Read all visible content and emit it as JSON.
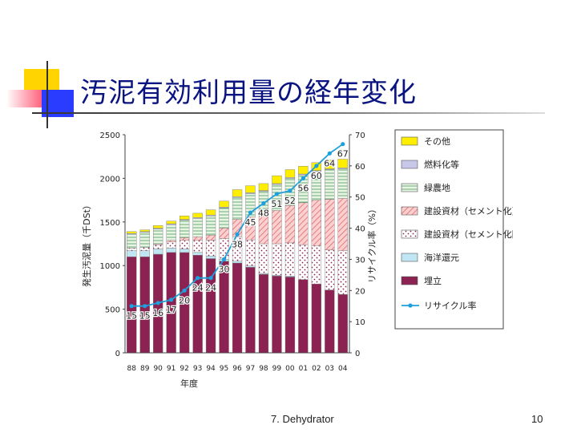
{
  "slide": {
    "title": "汚泥有効利用量の経年変化",
    "footer_center": "7. Dehydrator",
    "page_number": "10"
  },
  "chart_data": {
    "type": "bar",
    "stacked": true,
    "categories": [
      "88",
      "89",
      "90",
      "91",
      "92",
      "93",
      "94",
      "95",
      "96",
      "97",
      "98",
      "99",
      "00",
      "01",
      "02",
      "03",
      "04"
    ],
    "xlabel": "年度",
    "ylabel": "発生汚泥量（千DSt）",
    "ylim": [
      0,
      2500
    ],
    "yticks": [
      0,
      500,
      1000,
      1500,
      2000,
      2500
    ],
    "y2label": "リサイクル率（%）",
    "y2lim": [
      0,
      70
    ],
    "y2ticks": [
      0,
      10,
      20,
      30,
      40,
      50,
      60,
      70
    ],
    "legend_position": "right",
    "series": [
      {
        "name": "埋立",
        "color": "#8b2252",
        "pattern": "solid",
        "values": [
          1100,
          1100,
          1130,
          1150,
          1150,
          1120,
          1080,
          1050,
          1030,
          980,
          900,
          880,
          870,
          840,
          790,
          720,
          670
        ]
      },
      {
        "name": "海洋還元",
        "color": "#bfe6f2",
        "pattern": "solid",
        "values": [
          70,
          70,
          60,
          50,
          40,
          30,
          30,
          20,
          20,
          15,
          10,
          10,
          10,
          0,
          0,
          0,
          0
        ]
      },
      {
        "name": "建設資材（セメント化除く）",
        "color": "#ffffff",
        "pattern": "dots",
        "values": [
          30,
          40,
          50,
          70,
          100,
          140,
          180,
          240,
          280,
          300,
          340,
          360,
          380,
          400,
          440,
          460,
          500
        ]
      },
      {
        "name": "建設資材（セメント化）",
        "color": "#f4b8b8",
        "pattern": "hatch",
        "values": [
          0,
          0,
          10,
          20,
          30,
          40,
          60,
          120,
          200,
          260,
          320,
          380,
          430,
          480,
          520,
          580,
          600
        ]
      },
      {
        "name": "緑農地",
        "color": "#e2f2de",
        "pattern": "lines",
        "values": [
          160,
          170,
          170,
          180,
          200,
          210,
          220,
          230,
          250,
          270,
          280,
          300,
          310,
          320,
          330,
          340,
          340
        ]
      },
      {
        "name": "燃料化等",
        "color": "#c7c7ea",
        "pattern": "solid",
        "values": [
          10,
          10,
          10,
          10,
          10,
          10,
          10,
          10,
          10,
          10,
          10,
          10,
          10,
          10,
          10,
          10,
          10
        ]
      },
      {
        "name": "その他",
        "color": "#ffee00",
        "pattern": "solid",
        "values": [
          20,
          20,
          30,
          30,
          40,
          50,
          60,
          70,
          80,
          80,
          80,
          90,
          90,
          90,
          90,
          100,
          100
        ]
      }
    ],
    "line_series": {
      "name": "リサイクル率",
      "color": "#1ea0dc",
      "values": [
        15,
        15,
        16,
        17,
        20,
        24,
        24,
        30,
        38,
        45,
        48,
        51,
        52,
        56,
        60,
        64,
        67
      ],
      "labels": [
        "15",
        "15",
        "16",
        "17",
        "20",
        "24",
        "24",
        "30",
        "38",
        "45",
        "48",
        "51",
        "52",
        "56",
        "60",
        "64",
        "67"
      ]
    }
  }
}
